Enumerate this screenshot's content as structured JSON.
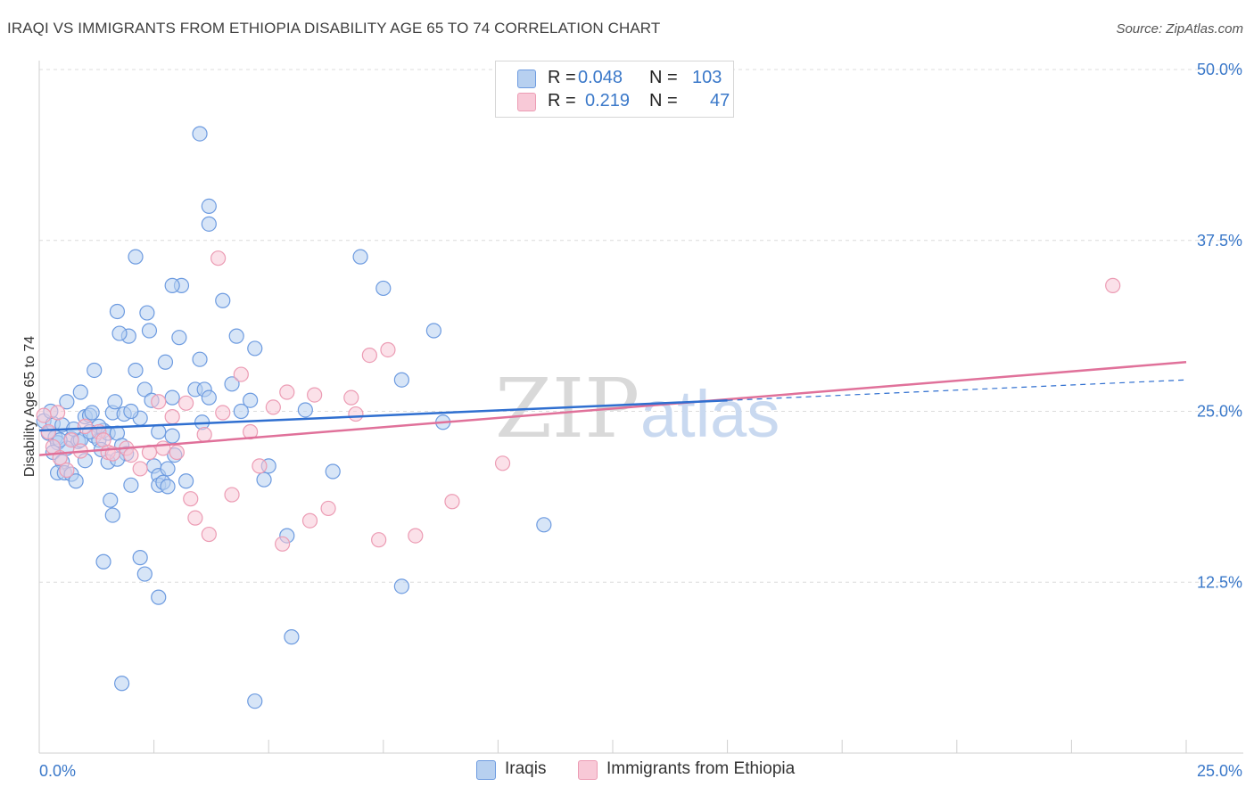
{
  "title": "IRAQI VS IMMIGRANTS FROM ETHIOPIA DISABILITY AGE 65 TO 74 CORRELATION CHART",
  "source": "Source: ZipAtlas.com",
  "watermark": {
    "zip": "ZIP",
    "atlas": "atlas"
  },
  "colors": {
    "blue_fill": "#b7d0f0",
    "blue_stroke": "#6d9be0",
    "blue_line": "#2f6fd0",
    "pink_fill": "#f8c9d7",
    "pink_stroke": "#ec9cb4",
    "pink_line": "#e0719a",
    "value_text": "#3a78c9",
    "grid": "#dcdcdc"
  },
  "legend_top": {
    "rows": [
      {
        "r_label": "R =",
        "r_value": "0.048",
        "n_label": "N =",
        "n_value": "103"
      },
      {
        "r_label": "R =",
        "r_value": "0.219",
        "n_label": "N =",
        "n_value": "47"
      }
    ]
  },
  "legend_bottom": {
    "items": [
      "Iraqis",
      "Immigrants from Ethiopia"
    ]
  },
  "chart_data": {
    "type": "scatter",
    "title": "IRAQI VS IMMIGRANTS FROM ETHIOPIA DISABILITY AGE 65 TO 74 CORRELATION CHART",
    "xlabel": "",
    "ylabel": "Disability Age 65 to 74",
    "xlim": [
      0,
      25
    ],
    "ylim": [
      0,
      50
    ],
    "x_tick_labels": [
      "0.0%",
      "25.0%"
    ],
    "y_ticks": [
      12.5,
      25.0,
      37.5,
      50.0
    ],
    "y_tick_labels": [
      "12.5%",
      "25.0%",
      "37.5%",
      "50.0%"
    ],
    "grid": true,
    "legend_position": "bottom",
    "series": [
      {
        "name": "Iraqis",
        "r": 0.048,
        "n": 103,
        "trend": {
          "x0": 0,
          "y0": 23.6,
          "x1": 15,
          "y1": 25.8,
          "dash_to_x": 25,
          "dash_to_y": 27.3
        },
        "points": [
          [
            0.1,
            24.3
          ],
          [
            0.2,
            23.4
          ],
          [
            0.3,
            24.1
          ],
          [
            0.25,
            25.0
          ],
          [
            0.35,
            23.1
          ],
          [
            0.4,
            22.7
          ],
          [
            0.3,
            22.0
          ],
          [
            0.5,
            24.0
          ],
          [
            0.6,
            25.7
          ],
          [
            0.7,
            23.0
          ],
          [
            0.5,
            21.3
          ],
          [
            0.4,
            20.5
          ],
          [
            0.55,
            20.5
          ],
          [
            0.7,
            20.4
          ],
          [
            0.8,
            19.9
          ],
          [
            0.85,
            22.8
          ],
          [
            0.9,
            26.4
          ],
          [
            1.0,
            24.6
          ],
          [
            1.1,
            24.7
          ],
          [
            1.2,
            23.2
          ],
          [
            1.2,
            28.0
          ],
          [
            1.15,
            24.9
          ],
          [
            1.3,
            22.9
          ],
          [
            1.35,
            22.2
          ],
          [
            1.4,
            23.6
          ],
          [
            1.5,
            23.4
          ],
          [
            1.5,
            21.3
          ],
          [
            1.6,
            24.9
          ],
          [
            1.65,
            25.7
          ],
          [
            1.7,
            23.4
          ],
          [
            1.8,
            22.5
          ],
          [
            1.85,
            24.8
          ],
          [
            1.9,
            21.9
          ],
          [
            1.95,
            30.5
          ],
          [
            2.0,
            19.6
          ],
          [
            1.75,
            30.7
          ],
          [
            1.7,
            32.3
          ],
          [
            1.6,
            17.4
          ],
          [
            1.55,
            18.5
          ],
          [
            1.4,
            14.0
          ],
          [
            2.1,
            28.0
          ],
          [
            2.2,
            24.5
          ],
          [
            2.3,
            26.6
          ],
          [
            2.35,
            32.2
          ],
          [
            2.4,
            30.9
          ],
          [
            2.45,
            25.8
          ],
          [
            2.5,
            21.0
          ],
          [
            2.6,
            23.5
          ],
          [
            2.6,
            20.3
          ],
          [
            2.6,
            19.6
          ],
          [
            2.7,
            19.8
          ],
          [
            2.75,
            28.6
          ],
          [
            2.8,
            19.5
          ],
          [
            2.8,
            20.8
          ],
          [
            2.9,
            26.0
          ],
          [
            2.9,
            23.2
          ],
          [
            2.95,
            21.8
          ],
          [
            3.1,
            34.2
          ],
          [
            2.9,
            34.2
          ],
          [
            3.05,
            30.4
          ],
          [
            2.1,
            36.3
          ],
          [
            2.2,
            14.3
          ],
          [
            2.3,
            13.1
          ],
          [
            2.6,
            11.4
          ],
          [
            1.8,
            5.1
          ],
          [
            3.2,
            19.9
          ],
          [
            3.4,
            26.6
          ],
          [
            3.5,
            28.8
          ],
          [
            3.55,
            24.2
          ],
          [
            3.6,
            26.6
          ],
          [
            3.7,
            26.0
          ],
          [
            3.7,
            40.0
          ],
          [
            3.7,
            38.7
          ],
          [
            4.0,
            33.1
          ],
          [
            4.2,
            27.0
          ],
          [
            4.3,
            30.5
          ],
          [
            4.4,
            25.0
          ],
          [
            4.6,
            25.8
          ],
          [
            4.7,
            29.6
          ],
          [
            4.9,
            20.0
          ],
          [
            5.0,
            21.0
          ],
          [
            5.4,
            15.9
          ],
          [
            5.5,
            8.5
          ],
          [
            5.8,
            25.1
          ],
          [
            6.4,
            20.6
          ],
          [
            7.0,
            36.3
          ],
          [
            7.5,
            34.0
          ],
          [
            7.9,
            27.3
          ],
          [
            7.9,
            12.2
          ],
          [
            8.6,
            30.9
          ],
          [
            8.8,
            24.2
          ],
          [
            11.0,
            16.7
          ],
          [
            3.5,
            45.3
          ],
          [
            4.7,
            3.8
          ],
          [
            0.9,
            22.9
          ],
          [
            1.0,
            21.4
          ],
          [
            1.3,
            23.9
          ],
          [
            0.6,
            22.3
          ],
          [
            0.75,
            23.7
          ],
          [
            2.0,
            25.0
          ],
          [
            1.1,
            23.5
          ],
          [
            0.45,
            22.9
          ],
          [
            1.7,
            21.5
          ]
        ]
      },
      {
        "name": "Immigrants from Ethiopia",
        "r": 0.219,
        "n": 47,
        "trend": {
          "x0": 0,
          "y0": 21.8,
          "x1": 25,
          "y1": 28.6
        },
        "points": [
          [
            0.1,
            24.7
          ],
          [
            0.2,
            23.5
          ],
          [
            0.3,
            22.4
          ],
          [
            0.4,
            24.9
          ],
          [
            0.45,
            21.6
          ],
          [
            0.6,
            20.7
          ],
          [
            0.7,
            22.9
          ],
          [
            0.9,
            22.1
          ],
          [
            1.0,
            23.9
          ],
          [
            1.3,
            23.5
          ],
          [
            1.4,
            22.9
          ],
          [
            1.5,
            22.0
          ],
          [
            1.6,
            21.9
          ],
          [
            1.9,
            22.3
          ],
          [
            2.0,
            21.8
          ],
          [
            2.2,
            20.8
          ],
          [
            2.4,
            22.0
          ],
          [
            2.6,
            25.7
          ],
          [
            2.7,
            22.3
          ],
          [
            2.9,
            24.6
          ],
          [
            3.0,
            22.0
          ],
          [
            3.2,
            25.6
          ],
          [
            3.3,
            18.6
          ],
          [
            3.4,
            17.2
          ],
          [
            3.6,
            23.3
          ],
          [
            3.7,
            16.0
          ],
          [
            3.9,
            36.2
          ],
          [
            4.0,
            24.9
          ],
          [
            4.2,
            18.9
          ],
          [
            4.4,
            27.7
          ],
          [
            4.6,
            23.5
          ],
          [
            4.8,
            21.0
          ],
          [
            5.1,
            25.3
          ],
          [
            5.3,
            15.3
          ],
          [
            5.4,
            26.4
          ],
          [
            5.9,
            17.0
          ],
          [
            6.0,
            26.2
          ],
          [
            6.3,
            17.9
          ],
          [
            6.8,
            26.0
          ],
          [
            6.9,
            24.8
          ],
          [
            7.2,
            29.1
          ],
          [
            7.4,
            15.6
          ],
          [
            7.6,
            29.5
          ],
          [
            8.2,
            15.9
          ],
          [
            9.0,
            18.4
          ],
          [
            10.1,
            21.2
          ],
          [
            23.4,
            34.2
          ]
        ]
      }
    ]
  }
}
